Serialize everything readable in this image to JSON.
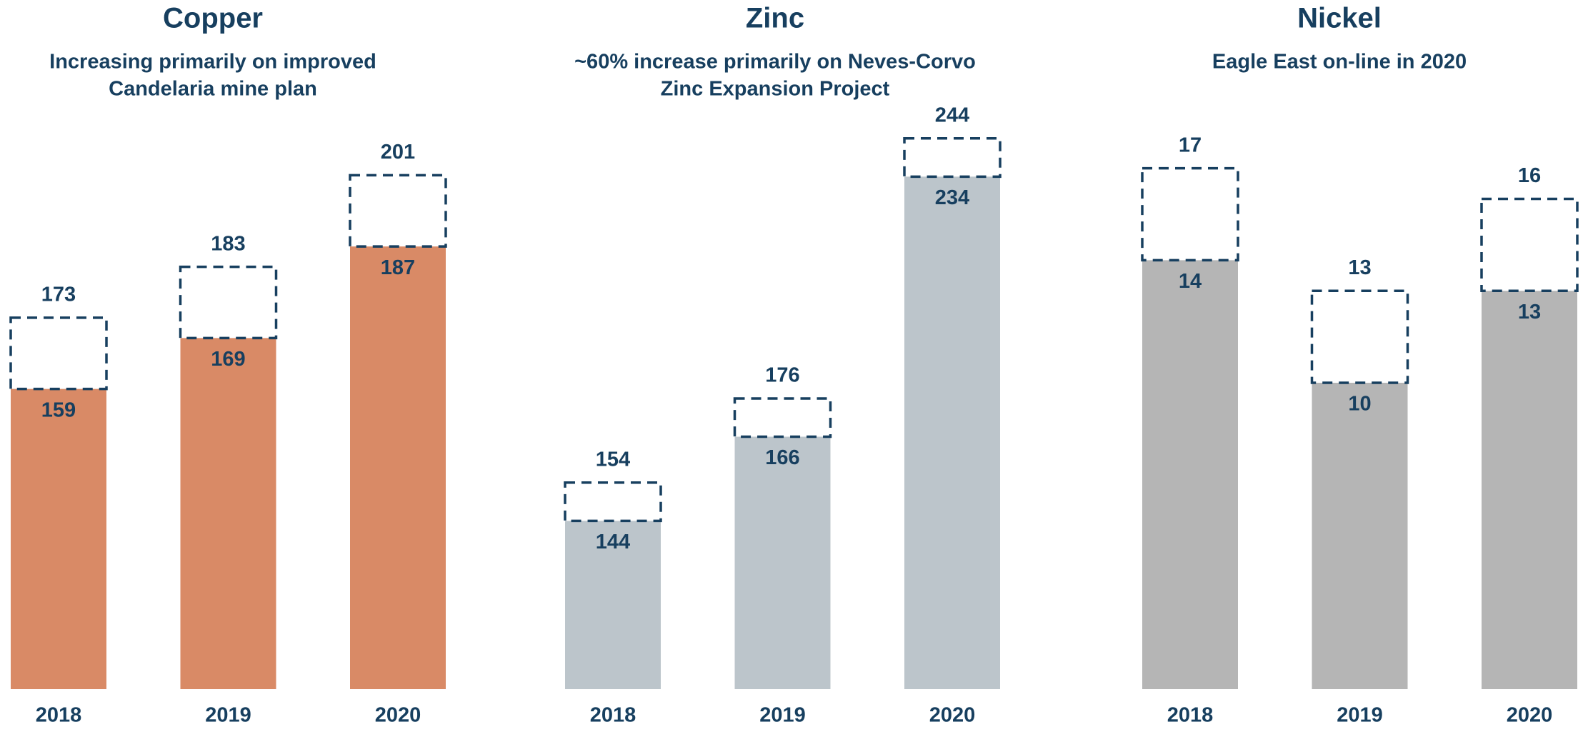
{
  "chart_data": [
    {
      "type": "bar",
      "title": "Copper",
      "subtitle": [
        "Increasing primarily on improved",
        "Candelaria mine plan"
      ],
      "categories": [
        "2018",
        "2019",
        "2020"
      ],
      "series": [
        {
          "values": [
            159,
            169,
            187
          ],
          "color": "#d98a66"
        },
        {
          "values": [
            173,
            183,
            201
          ],
          "color": "#173f5f",
          "style": "dashed"
        }
      ],
      "ylim": [
        100,
        212
      ]
    },
    {
      "type": "bar",
      "title": "Zinc",
      "subtitle": [
        "~60% increase primarily on Neves-Corvo",
        "Zinc Expansion Project"
      ],
      "categories": [
        "2018",
        "2019",
        "2020"
      ],
      "series": [
        {
          "values": [
            144,
            166,
            234
          ],
          "color": "#bcc5cb"
        },
        {
          "values": [
            154,
            176,
            244
          ],
          "color": "#173f5f",
          "style": "dashed"
        }
      ],
      "ylim": [
        100,
        249
      ]
    },
    {
      "type": "bar",
      "title": "Nickel",
      "subtitle": [
        "Eagle East on-line in 2020"
      ],
      "categories": [
        "2018",
        "2019",
        "2020"
      ],
      "series": [
        {
          "values": [
            14,
            10,
            13
          ],
          "color": "#b5b5b5"
        },
        {
          "values": [
            17,
            13,
            16
          ],
          "color": "#173f5f",
          "style": "dashed"
        }
      ],
      "ylim": [
        0,
        18.6
      ]
    }
  ]
}
